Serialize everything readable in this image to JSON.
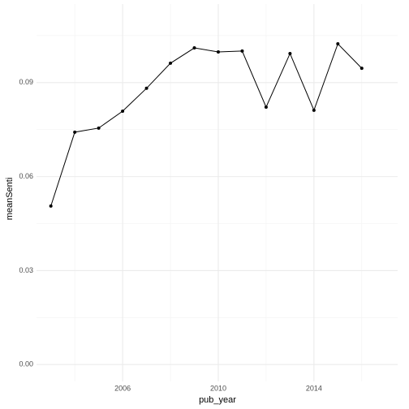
{
  "chart_data": {
    "type": "line",
    "x_label": "pub_year",
    "y_label": "meanSenti",
    "x": [
      2003,
      2004,
      2005,
      2006,
      2007,
      2008,
      2009,
      2010,
      2011,
      2012,
      2013,
      2014,
      2015,
      2016
    ],
    "series": [
      {
        "color": "#000000",
        "values": [
          0.0506,
          0.0742,
          0.0755,
          0.0809,
          0.0882,
          0.0962,
          0.1011,
          0.0998,
          0.1001,
          0.0822,
          0.0993,
          0.0812,
          0.1024,
          0.0946
        ]
      }
    ],
    "xlim": [
      2002.4,
      2017.5
    ],
    "xticks": [
      2006,
      2010,
      2014
    ],
    "x_minor_ticks": [
      2004,
      2008,
      2012,
      2016
    ],
    "ylim": [
      -0.0054,
      0.1151
    ],
    "yticks": [
      {
        "value": 0,
        "label": "0.00"
      },
      {
        "value": 0.03,
        "label": "0.03"
      },
      {
        "value": 0.06,
        "label": "0.06"
      },
      {
        "value": 0.09,
        "label": "0.09"
      }
    ],
    "y_minor_ticks": [
      0.015,
      0.045,
      0.075,
      0.105
    ],
    "grid": true
  }
}
